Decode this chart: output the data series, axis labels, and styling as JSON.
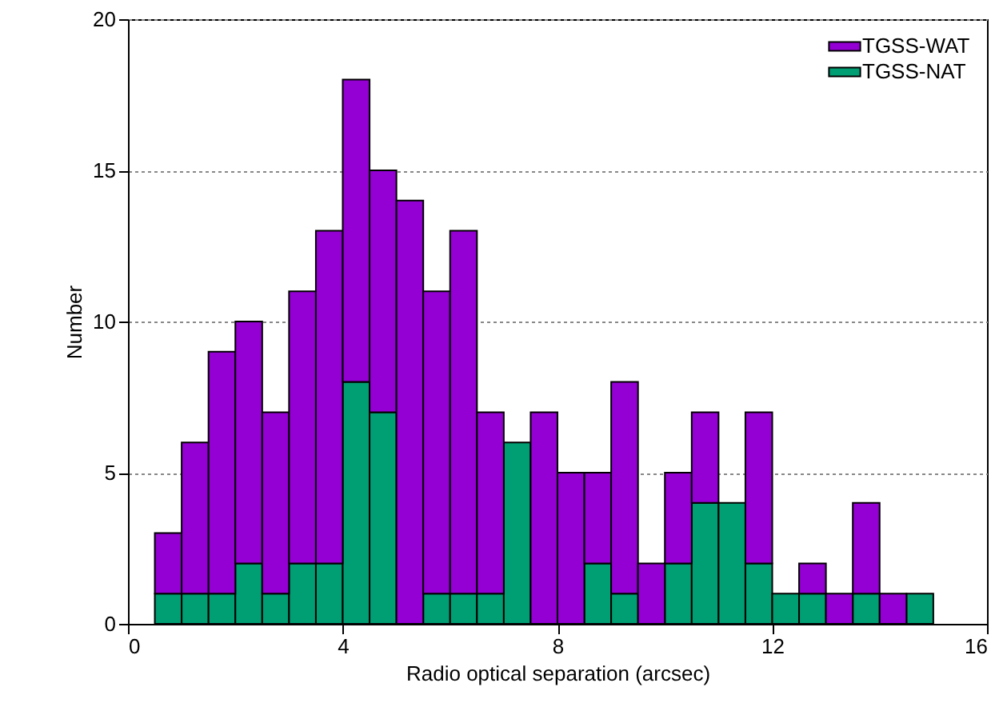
{
  "chart_data": {
    "type": "bar",
    "xlabel": "Radio optical separation (arcsec)",
    "ylabel": "Number",
    "x": [
      0.75,
      1.25,
      1.75,
      2.25,
      2.75,
      3.25,
      3.75,
      4.25,
      4.75,
      5.25,
      5.75,
      6.25,
      6.75,
      7.25,
      7.75,
      8.25,
      8.75,
      9.25,
      9.75,
      10.25,
      10.75,
      11.25,
      11.75,
      12.25,
      12.75,
      13.25,
      13.75,
      14.25,
      14.75
    ],
    "stacked": true,
    "series": [
      {
        "name": "TGSS-NAT",
        "color": "#009e73",
        "values": [
          1,
          1,
          1,
          2,
          1,
          2,
          2,
          8,
          7,
          0,
          1,
          1,
          1,
          6,
          0,
          0,
          2,
          1,
          0,
          2,
          4,
          4,
          2,
          1,
          1,
          0,
          1,
          0,
          1
        ]
      },
      {
        "name": "TGSS-WAT",
        "color": "#9400d3",
        "values": [
          2,
          5,
          8,
          8,
          6,
          9,
          11,
          10,
          8,
          14,
          10,
          12,
          6,
          0,
          7,
          5,
          3,
          7,
          2,
          3,
          3,
          0,
          5,
          0,
          1,
          1,
          3,
          1,
          0
        ]
      }
    ],
    "xlim": [
      0,
      16
    ],
    "xticks": [
      0,
      4,
      8,
      12,
      16
    ],
    "ylim": [
      0,
      20
    ],
    "yticks": [
      0,
      5,
      10,
      15,
      20
    ],
    "grid": "y",
    "legend": "top right"
  }
}
